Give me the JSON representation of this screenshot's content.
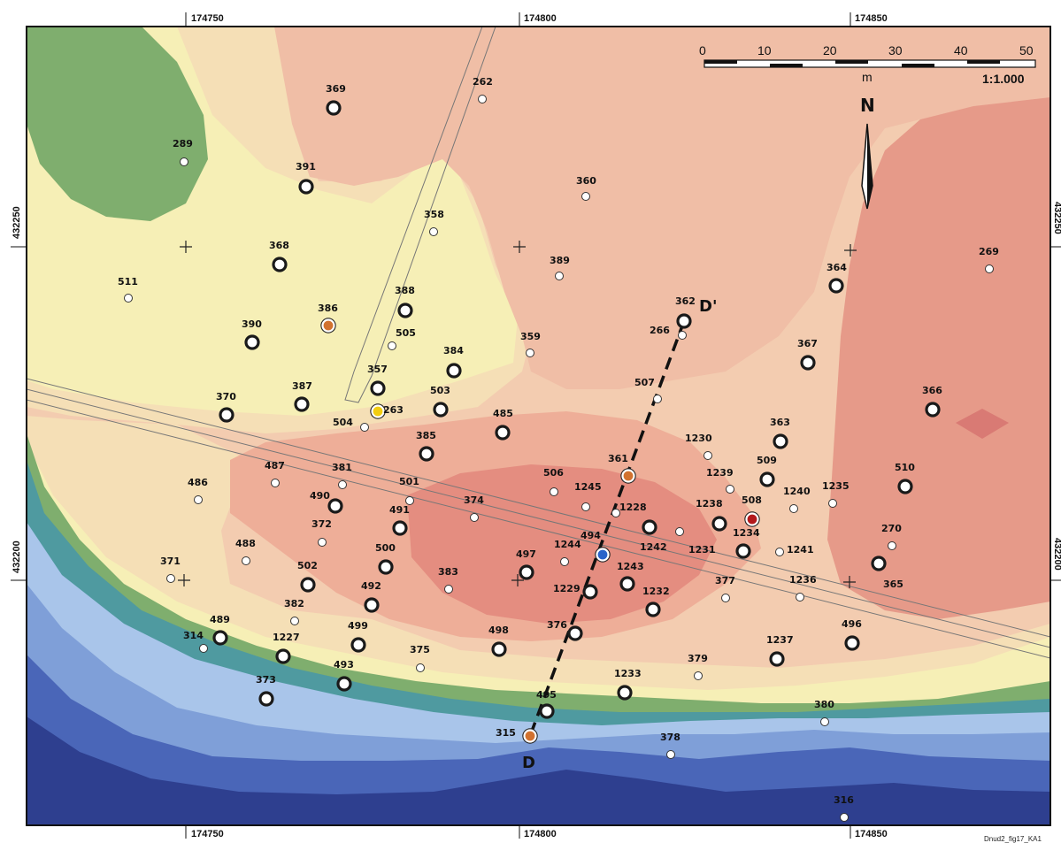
{
  "colors": {
    "sea_deep": "#2e3f8f",
    "sea_mid": "#4a66b8",
    "sea_light": "#7f9fd8",
    "sea_pale": "#a9c5ea",
    "teal": "#4f9aa0",
    "green": "#7fae6e",
    "pale_yellow": "#f6efb6",
    "beige": "#f5dfb6",
    "peach": "#f3ccb0",
    "salmon": "#eeae98",
    "red": "#e48d80",
    "dark_red": "#d97a74",
    "marker_orange": "#d2722f",
    "marker_yellow": "#f2cd10",
    "marker_blue": "#2a63c9",
    "marker_red": "#b3191c"
  },
  "coords": {
    "x_top": [
      "174750",
      "174800",
      "174850"
    ],
    "x_bottom": [
      "174750",
      "174800",
      "174850"
    ],
    "y_left": [
      "432250",
      "432200"
    ],
    "y_right": [
      "432250",
      "432200"
    ]
  },
  "scale": {
    "ticks": [
      "0",
      "10",
      "20",
      "30",
      "40",
      "50"
    ],
    "unit": "m",
    "ratio": "1:1.000"
  },
  "north": "N",
  "section": {
    "start": "D",
    "end": "D'"
  },
  "reference": "Dnud2_fig17_KA1",
  "points": [
    {
      "id": "369",
      "kind": "well"
    },
    {
      "id": "262",
      "kind": "probe"
    },
    {
      "id": "289",
      "kind": "probe"
    },
    {
      "id": "391",
      "kind": "well"
    },
    {
      "id": "360",
      "kind": "probe"
    },
    {
      "id": "358",
      "kind": "probe"
    },
    {
      "id": "368",
      "kind": "well"
    },
    {
      "id": "389",
      "kind": "probe"
    },
    {
      "id": "269",
      "kind": "probe"
    },
    {
      "id": "364",
      "kind": "well"
    },
    {
      "id": "511",
      "kind": "probe"
    },
    {
      "id": "388",
      "kind": "well"
    },
    {
      "id": "386",
      "kind": "orange"
    },
    {
      "id": "362",
      "kind": "well"
    },
    {
      "id": "390",
      "kind": "well"
    },
    {
      "id": "505",
      "kind": "probe"
    },
    {
      "id": "266",
      "kind": "probe"
    },
    {
      "id": "359",
      "kind": "probe"
    },
    {
      "id": "384",
      "kind": "well"
    },
    {
      "id": "367",
      "kind": "well"
    },
    {
      "id": "357",
      "kind": "well"
    },
    {
      "id": "387",
      "kind": "well"
    },
    {
      "id": "370",
      "kind": "well"
    },
    {
      "id": "263",
      "kind": "yellow"
    },
    {
      "id": "503",
      "kind": "well"
    },
    {
      "id": "507",
      "kind": "probe"
    },
    {
      "id": "366",
      "kind": "well"
    },
    {
      "id": "504",
      "kind": "probe"
    },
    {
      "id": "485",
      "kind": "well"
    },
    {
      "id": "363",
      "kind": "well"
    },
    {
      "id": "385",
      "kind": "well"
    },
    {
      "id": "1230",
      "kind": "probe"
    },
    {
      "id": "361",
      "kind": "orange"
    },
    {
      "id": "509",
      "kind": "well"
    },
    {
      "id": "1239",
      "kind": "probe"
    },
    {
      "id": "487",
      "kind": "probe"
    },
    {
      "id": "381",
      "kind": "probe"
    },
    {
      "id": "506",
      "kind": "probe"
    },
    {
      "id": "510",
      "kind": "well"
    },
    {
      "id": "486",
      "kind": "probe"
    },
    {
      "id": "501",
      "kind": "probe"
    },
    {
      "id": "1245",
      "kind": "probe"
    },
    {
      "id": "1240",
      "kind": "probe"
    },
    {
      "id": "1235",
      "kind": "probe"
    },
    {
      "id": "490",
      "kind": "well"
    },
    {
      "id": "374",
      "kind": "probe"
    },
    {
      "id": "1228",
      "kind": "probe"
    },
    {
      "id": "1238",
      "kind": "well"
    },
    {
      "id": "508",
      "kind": "red"
    },
    {
      "id": "491",
      "kind": "well"
    },
    {
      "id": "372",
      "kind": "probe"
    },
    {
      "id": "494",
      "kind": "blue"
    },
    {
      "id": "1242",
      "kind": "well"
    },
    {
      "id": "1231",
      "kind": "probe"
    },
    {
      "id": "1234",
      "kind": "well"
    },
    {
      "id": "270",
      "kind": "probe"
    },
    {
      "id": "488",
      "kind": "probe"
    },
    {
      "id": "500",
      "kind": "well"
    },
    {
      "id": "1244",
      "kind": "probe"
    },
    {
      "id": "497",
      "kind": "well"
    },
    {
      "id": "1241",
      "kind": "probe"
    },
    {
      "id": "371",
      "kind": "probe"
    },
    {
      "id": "502",
      "kind": "well"
    },
    {
      "id": "383",
      "kind": "probe"
    },
    {
      "id": "1243",
      "kind": "well"
    },
    {
      "id": "365",
      "kind": "well"
    },
    {
      "id": "492",
      "kind": "well"
    },
    {
      "id": "1229",
      "kind": "well"
    },
    {
      "id": "377",
      "kind": "probe"
    },
    {
      "id": "1236",
      "kind": "probe"
    },
    {
      "id": "1232",
      "kind": "well"
    },
    {
      "id": "382",
      "kind": "probe"
    },
    {
      "id": "489",
      "kind": "well"
    },
    {
      "id": "499",
      "kind": "well"
    },
    {
      "id": "376",
      "kind": "well"
    },
    {
      "id": "498",
      "kind": "well"
    },
    {
      "id": "1237",
      "kind": "well"
    },
    {
      "id": "496",
      "kind": "well"
    },
    {
      "id": "314",
      "kind": "probe"
    },
    {
      "id": "1227",
      "kind": "well"
    },
    {
      "id": "375",
      "kind": "probe"
    },
    {
      "id": "379",
      "kind": "probe"
    },
    {
      "id": "1233",
      "kind": "well"
    },
    {
      "id": "373",
      "kind": "well"
    },
    {
      "id": "493",
      "kind": "well"
    },
    {
      "id": "495",
      "kind": "well"
    },
    {
      "id": "380",
      "kind": "probe"
    },
    {
      "id": "315",
      "kind": "orange"
    },
    {
      "id": "378",
      "kind": "probe"
    },
    {
      "id": "316",
      "kind": "probe"
    }
  ]
}
